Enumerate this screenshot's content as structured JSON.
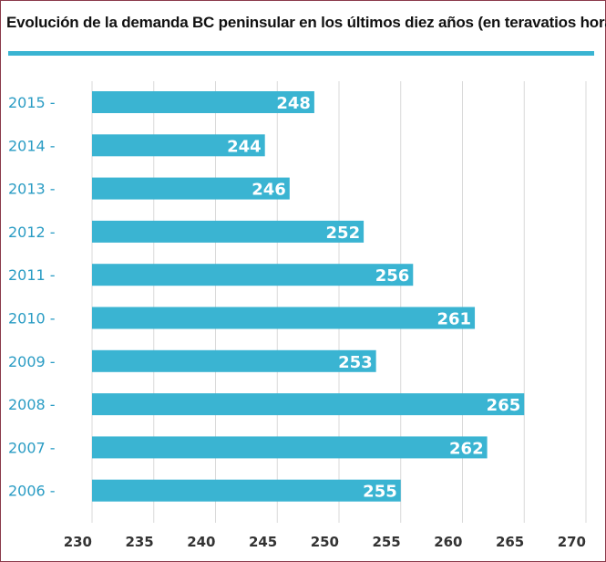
{
  "chart_data": {
    "type": "bar",
    "orientation": "horizontal",
    "title": "Evolución de la demanda BC peninsular en los últimos diez años (en teravatios hora)",
    "categories": [
      "2015",
      "2014",
      "2013",
      "2012",
      "2011",
      "2010",
      "2009",
      "2008",
      "2007",
      "2006"
    ],
    "values": [
      248,
      244,
      246,
      252,
      256,
      261,
      253,
      265,
      262,
      255
    ],
    "value_labels": [
      "248",
      "244",
      "246",
      "252",
      "256",
      "261",
      "253",
      "265",
      "262",
      "255"
    ],
    "xticks": [
      "230",
      "235",
      "240",
      "245",
      "250",
      "255",
      "260",
      "265",
      "270"
    ],
    "xlim": [
      230,
      271
    ],
    "grid": "vertical",
    "bar_color": "#3ab4d2",
    "category_color": "#2a9cc4",
    "tick_suffix": " -"
  }
}
